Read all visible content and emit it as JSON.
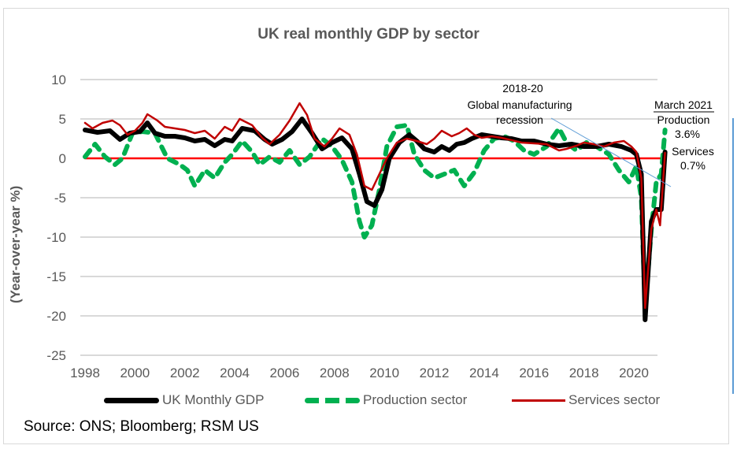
{
  "chart_data": {
    "type": "line",
    "title": "UK real monthly GDP by sector",
    "xlabel": "",
    "ylabel": "(Year-over-year %)",
    "ylim": [
      -25,
      10
    ],
    "xlim": [
      1998,
      2021.3
    ],
    "yticks": [
      10,
      5,
      0,
      -5,
      -10,
      -15,
      -20,
      -25
    ],
    "xticks": [
      1998,
      2000,
      2002,
      2004,
      2006,
      2008,
      2010,
      2012,
      2014,
      2016,
      2018,
      2020
    ],
    "grid": true,
    "zero_line_color": "#ff0000",
    "legend_position": "bottom",
    "series": [
      {
        "name": "UK Monthly GDP",
        "color": "#000000",
        "style": "solid-thick",
        "x": [
          1998.0,
          1998.5,
          1999.0,
          1999.4,
          1999.8,
          2000.2,
          2000.5,
          2000.8,
          2001.2,
          2001.6,
          2002.0,
          2002.4,
          2002.8,
          2003.2,
          2003.6,
          2003.9,
          2004.3,
          2004.8,
          2005.2,
          2005.5,
          2005.9,
          2006.3,
          2006.7,
          2007.1,
          2007.5,
          2007.9,
          2008.3,
          2008.7,
          2009.0,
          2009.3,
          2009.6,
          2009.9,
          2010.2,
          2010.6,
          2011.0,
          2011.3,
          2011.6,
          2012.0,
          2012.3,
          2012.6,
          2012.9,
          2013.2,
          2013.5,
          2013.9,
          2014.3,
          2014.7,
          2015.1,
          2015.5,
          2016.0,
          2016.5,
          2017.0,
          2017.5,
          2018.0,
          2018.5,
          2019.0,
          2019.5,
          2019.9,
          2020.1,
          2020.3,
          2020.45,
          2020.7,
          2020.9,
          2021.1,
          2021.25
        ],
        "y": [
          3.6,
          3.3,
          3.5,
          2.4,
          3.2,
          3.4,
          4.5,
          3.2,
          2.8,
          2.8,
          2.6,
          2.2,
          2.4,
          1.6,
          2.4,
          2.2,
          3.8,
          3.5,
          2.4,
          1.8,
          2.4,
          3.4,
          5.0,
          3.2,
          1.2,
          2.0,
          2.6,
          1.2,
          -2.0,
          -5.5,
          -6.0,
          -4.0,
          0.0,
          2.0,
          3.0,
          2.2,
          1.2,
          0.8,
          1.5,
          1.0,
          1.8,
          2.0,
          2.5,
          3.0,
          2.8,
          2.6,
          2.5,
          2.2,
          2.2,
          1.8,
          1.6,
          1.8,
          1.5,
          1.5,
          1.8,
          1.5,
          1.0,
          0.5,
          -2.0,
          -20.5,
          -8.0,
          -6.5,
          -6.5,
          0.8
        ]
      },
      {
        "name": "Production sector",
        "color": "#00b050",
        "style": "dashed-thick",
        "x": [
          1998.0,
          1998.4,
          1998.8,
          1999.2,
          1999.5,
          1999.9,
          2000.3,
          2000.8,
          2001.3,
          2001.8,
          2002.1,
          2002.4,
          2002.8,
          2003.2,
          2003.6,
          2003.9,
          2004.3,
          2004.7,
          2005.0,
          2005.4,
          2005.8,
          2006.2,
          2006.6,
          2007.0,
          2007.5,
          2007.9,
          2008.3,
          2008.7,
          2009.0,
          2009.2,
          2009.5,
          2009.8,
          2010.1,
          2010.5,
          2010.9,
          2011.2,
          2011.6,
          2012.0,
          2012.4,
          2012.8,
          2013.2,
          2013.6,
          2014.0,
          2014.4,
          2014.8,
          2015.2,
          2015.6,
          2016.0,
          2016.5,
          2017.0,
          2017.3,
          2017.7,
          2018.1,
          2018.5,
          2019.0,
          2019.4,
          2019.8,
          2020.1,
          2020.3,
          2020.45,
          2020.7,
          2020.9,
          2021.1,
          2021.25
        ],
        "y": [
          0.2,
          1.8,
          0.2,
          -0.8,
          0.0,
          3.2,
          3.4,
          3.2,
          0.0,
          -0.8,
          -1.5,
          -3.5,
          -1.5,
          -2.5,
          -0.5,
          0.5,
          2.2,
          0.8,
          -0.8,
          0.2,
          -0.5,
          1.0,
          -0.8,
          0.2,
          2.5,
          1.5,
          -0.2,
          -3.0,
          -8.0,
          -10.0,
          -8.5,
          -4.0,
          1.5,
          4.0,
          4.2,
          0.5,
          -1.5,
          -2.5,
          -2.0,
          -1.5,
          -3.5,
          -1.8,
          1.0,
          2.5,
          2.8,
          2.2,
          1.0,
          0.5,
          1.5,
          3.8,
          2.0,
          1.0,
          2.0,
          1.5,
          0.5,
          -1.5,
          -3.0,
          -1.0,
          -5.0,
          -19.0,
          -9.0,
          -3.0,
          -2.0,
          3.6
        ]
      },
      {
        "name": "Services sector",
        "color": "#c00000",
        "style": "solid",
        "x": [
          1998.0,
          1998.3,
          1998.7,
          1999.1,
          1999.4,
          1999.7,
          2000.0,
          2000.3,
          2000.5,
          2000.9,
          2001.2,
          2001.6,
          2002.0,
          2002.4,
          2002.8,
          2003.2,
          2003.6,
          2003.9,
          2004.2,
          2004.7,
          2005.1,
          2005.4,
          2005.8,
          2006.2,
          2006.6,
          2006.9,
          2007.2,
          2007.6,
          2007.9,
          2008.2,
          2008.6,
          2008.9,
          2009.2,
          2009.5,
          2009.8,
          2010.1,
          2010.5,
          2010.9,
          2011.3,
          2011.7,
          2012.0,
          2012.3,
          2012.7,
          2013.0,
          2013.3,
          2013.6,
          2013.9,
          2014.3,
          2014.7,
          2015.1,
          2015.5,
          2016.0,
          2016.5,
          2017.0,
          2017.3,
          2017.7,
          2018.0,
          2018.4,
          2018.8,
          2019.2,
          2019.6,
          2019.9,
          2020.1,
          2020.3,
          2020.45,
          2020.7,
          2020.9,
          2021.05,
          2021.25
        ],
        "y": [
          4.5,
          3.8,
          4.5,
          4.8,
          4.2,
          3.0,
          3.5,
          4.5,
          5.6,
          4.8,
          4.0,
          3.8,
          3.6,
          3.2,
          3.5,
          2.5,
          4.0,
          3.5,
          5.0,
          4.2,
          2.6,
          1.8,
          3.0,
          4.8,
          7.0,
          5.5,
          2.5,
          1.5,
          2.5,
          3.8,
          3.0,
          0.5,
          -3.5,
          -4.0,
          -2.0,
          0.0,
          2.0,
          2.5,
          2.2,
          1.8,
          2.5,
          3.5,
          2.8,
          3.2,
          3.8,
          3.0,
          2.6,
          2.8,
          2.6,
          2.3,
          2.0,
          1.9,
          1.8,
          1.0,
          1.2,
          1.6,
          2.0,
          1.8,
          1.5,
          2.0,
          2.2,
          1.5,
          0.8,
          -2.5,
          -19.0,
          -9.0,
          -6.5,
          -8.5,
          0.7
        ]
      },
      {
        "name": "Zero line",
        "color": "#ff0000",
        "style": "solid",
        "x": [
          1998.0,
          2021.25
        ],
        "y": [
          0,
          0
        ]
      }
    ],
    "annotations": [
      {
        "text_lines": [
          "2018-20",
          "Global manufacturing",
          "recession"
        ],
        "type": "callout-line"
      },
      {
        "text_lines": [
          "March 2021"
        ],
        "underline": true
      },
      {
        "text_lines": [
          "Production",
          "3.6%"
        ]
      },
      {
        "text_lines": [
          "Services",
          "0.7%"
        ]
      }
    ]
  },
  "legend": {
    "items": [
      {
        "label": "UK Monthly GDP",
        "color": "#000000"
      },
      {
        "label": "Production sector",
        "color": "#00b050"
      },
      {
        "label": "Services sector",
        "color": "#c00000"
      }
    ]
  },
  "source": "Source: ONS; Bloomberg; RSM US",
  "colors": {
    "grid": "#d9d9d9",
    "text": "#595959",
    "callout_line": "#5b9bd5"
  }
}
